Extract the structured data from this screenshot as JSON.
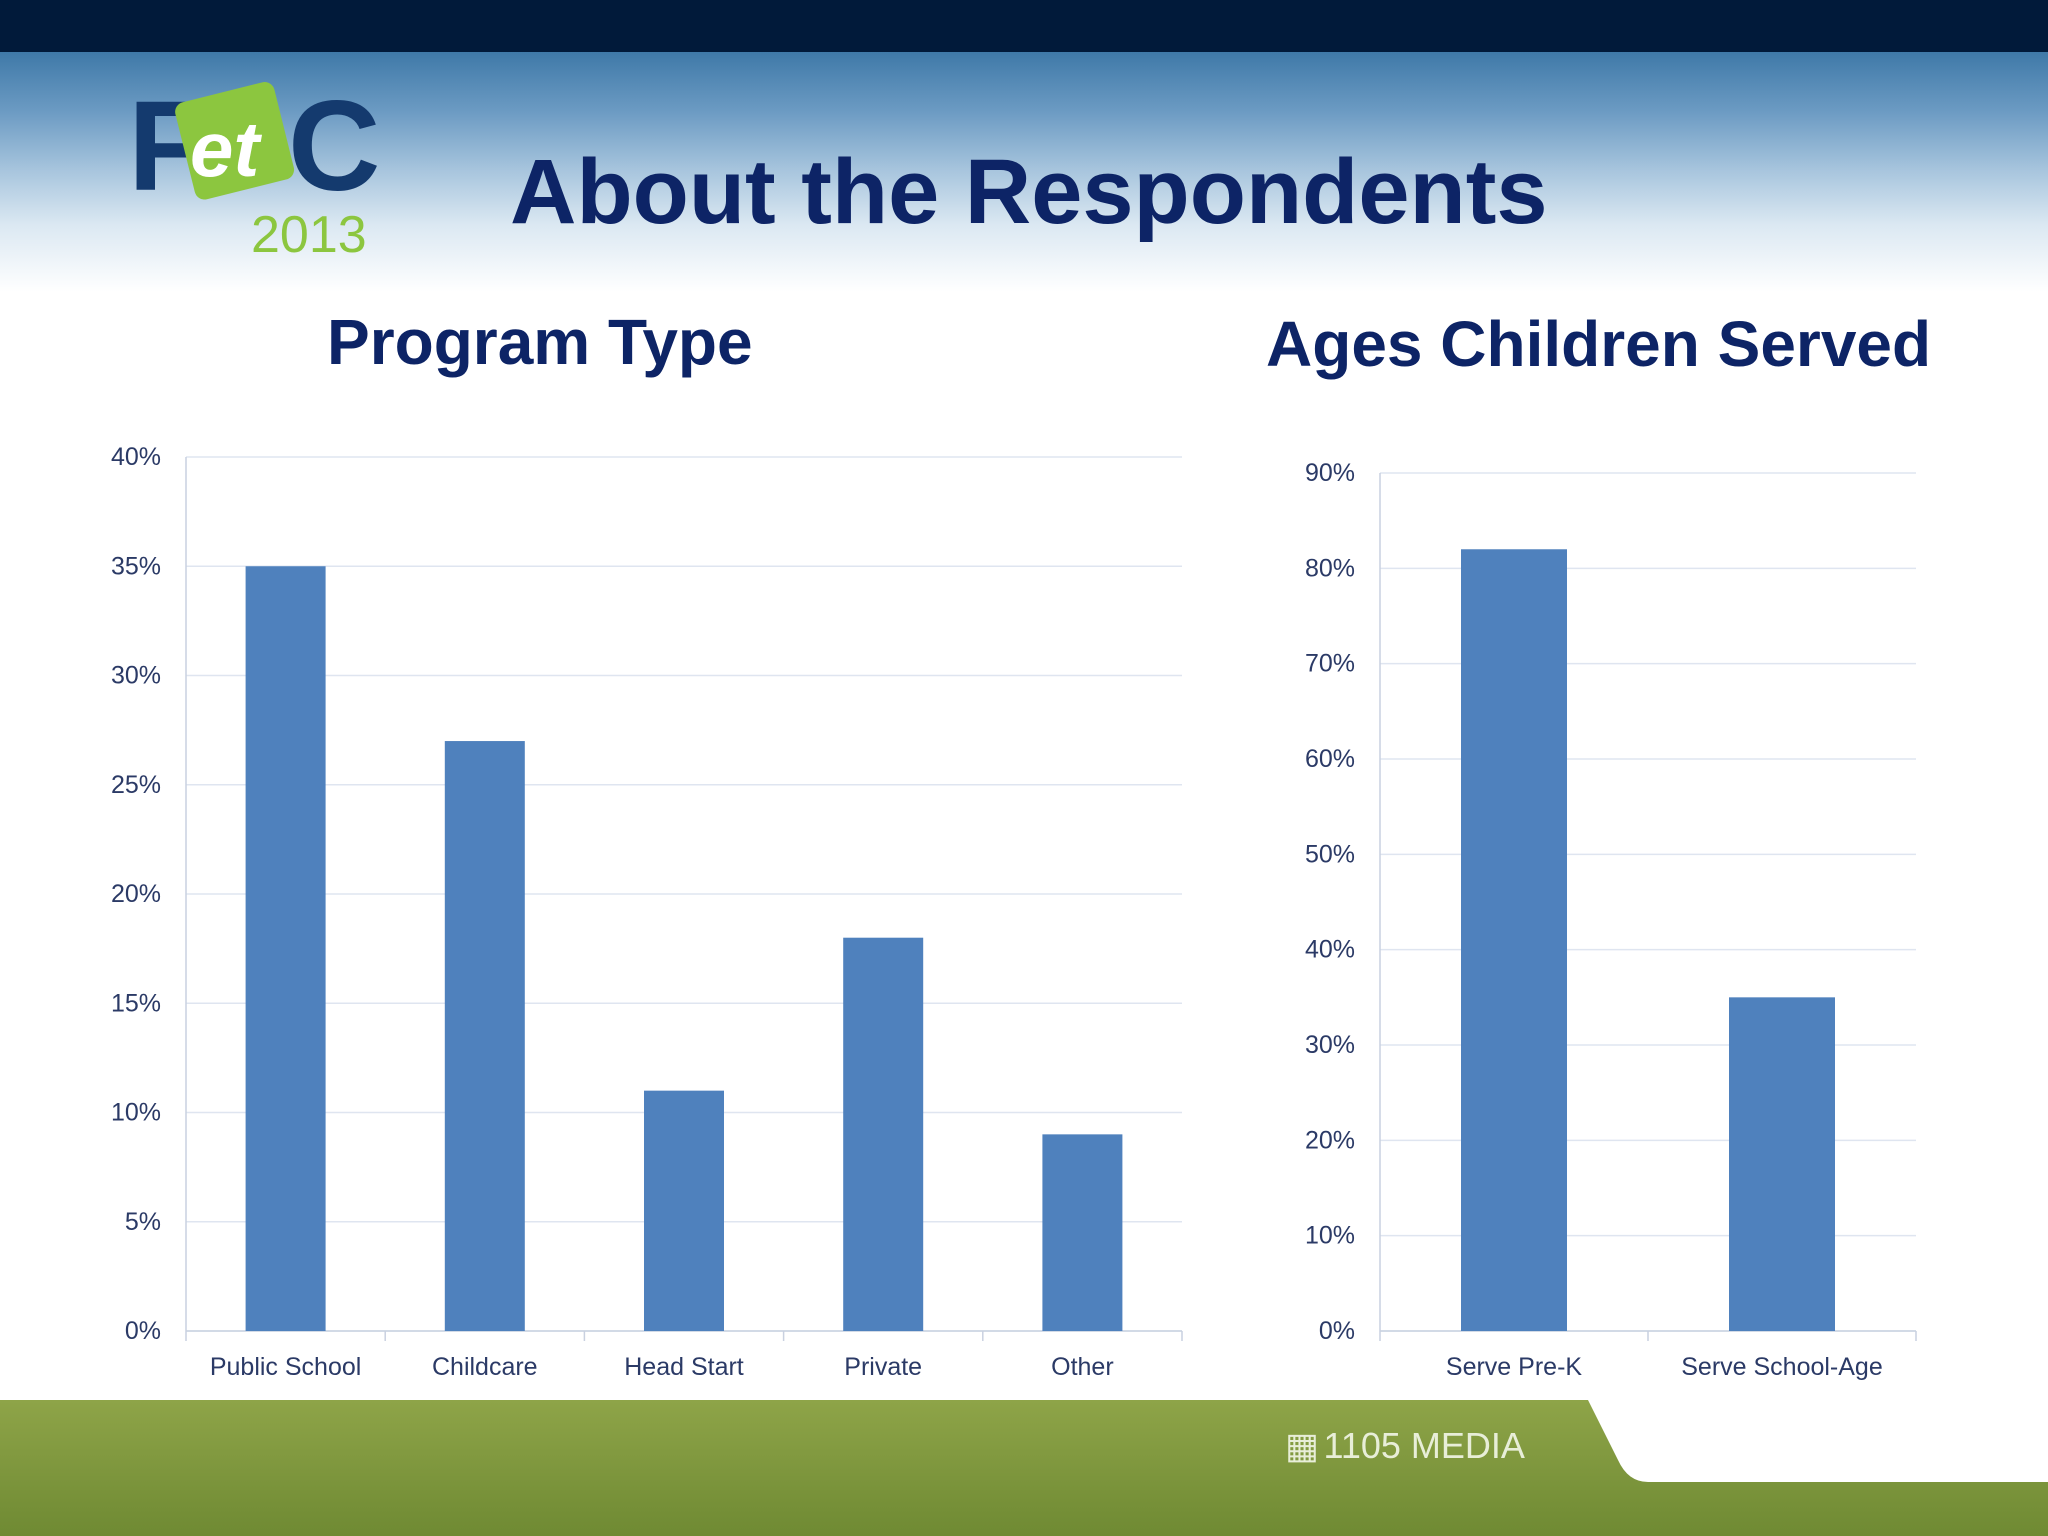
{
  "slide": {
    "title": "About the Respondents",
    "logo_text": {
      "f": "F",
      "et": "et",
      "c": "C",
      "year": "2013"
    },
    "footer_logo": "1105 MEDIA",
    "colors": {
      "navy": "#0d2466",
      "bar": "#4f81bd",
      "topbar": "#011a3a",
      "footer_green": "#7a9434"
    }
  },
  "chart_data": [
    {
      "type": "bar",
      "title": "Program Type",
      "categories": [
        "Public School",
        "Childcare",
        "Head Start",
        "Private",
        "Other"
      ],
      "values": [
        35,
        27,
        11,
        18,
        9
      ],
      "unit": "%",
      "ylim": [
        0,
        40
      ],
      "yticks": [
        "0%",
        "5%",
        "10%",
        "15%",
        "20%",
        "25%",
        "30%",
        "35%",
        "40%"
      ],
      "grid": true,
      "legend": "none"
    },
    {
      "type": "bar",
      "title": "Ages Children Served",
      "categories": [
        "Serve Pre-K",
        "Serve School-Age"
      ],
      "values": [
        82,
        35
      ],
      "unit": "%",
      "ylim": [
        0,
        90
      ],
      "yticks": [
        "0%",
        "10%",
        "20%",
        "30%",
        "40%",
        "50%",
        "60%",
        "70%",
        "80%",
        "90%"
      ],
      "grid": true,
      "legend": "none"
    }
  ]
}
